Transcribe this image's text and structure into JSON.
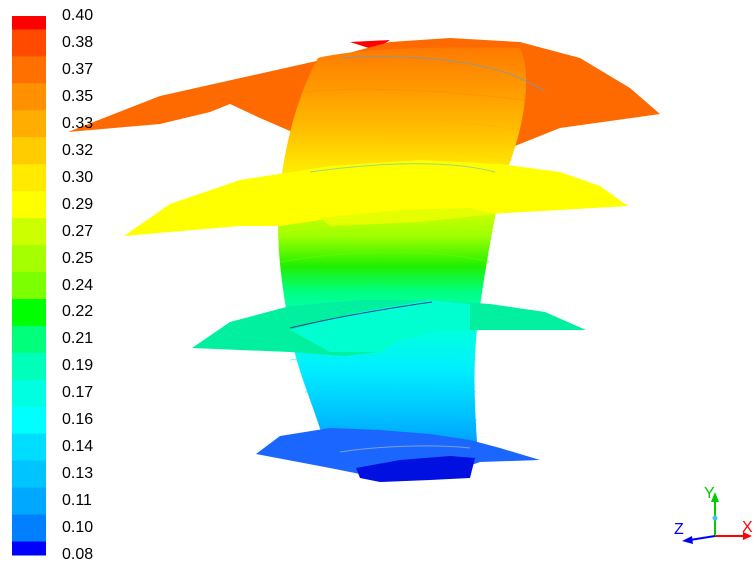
{
  "legend": {
    "labels": [
      "0.40",
      "0.38",
      "0.37",
      "0.35",
      "0.33",
      "0.32",
      "0.30",
      "0.29",
      "0.27",
      "0.25",
      "0.24",
      "0.22",
      "0.21",
      "0.19",
      "0.17",
      "0.16",
      "0.14",
      "0.13",
      "0.11",
      "0.10",
      "0.08"
    ],
    "colors": [
      "#ff0000",
      "#ff4a00",
      "#ff7000",
      "#ff9000",
      "#ffae00",
      "#ffcc00",
      "#ffea00",
      "#ffff00",
      "#ccff00",
      "#a6ff00",
      "#7cff00",
      "#00ff00",
      "#00ff7a",
      "#00ffbb",
      "#00ffe0",
      "#00ffff",
      "#00ddff",
      "#00c4ff",
      "#00a8ff",
      "#0080ff",
      "#0000ff"
    ]
  },
  "axes": {
    "x": "X",
    "y": "Y",
    "z": "Z"
  },
  "colors": {
    "axis_x": "#ff0000",
    "axis_y": "#00cc00",
    "axis_z": "#0000ff"
  }
}
